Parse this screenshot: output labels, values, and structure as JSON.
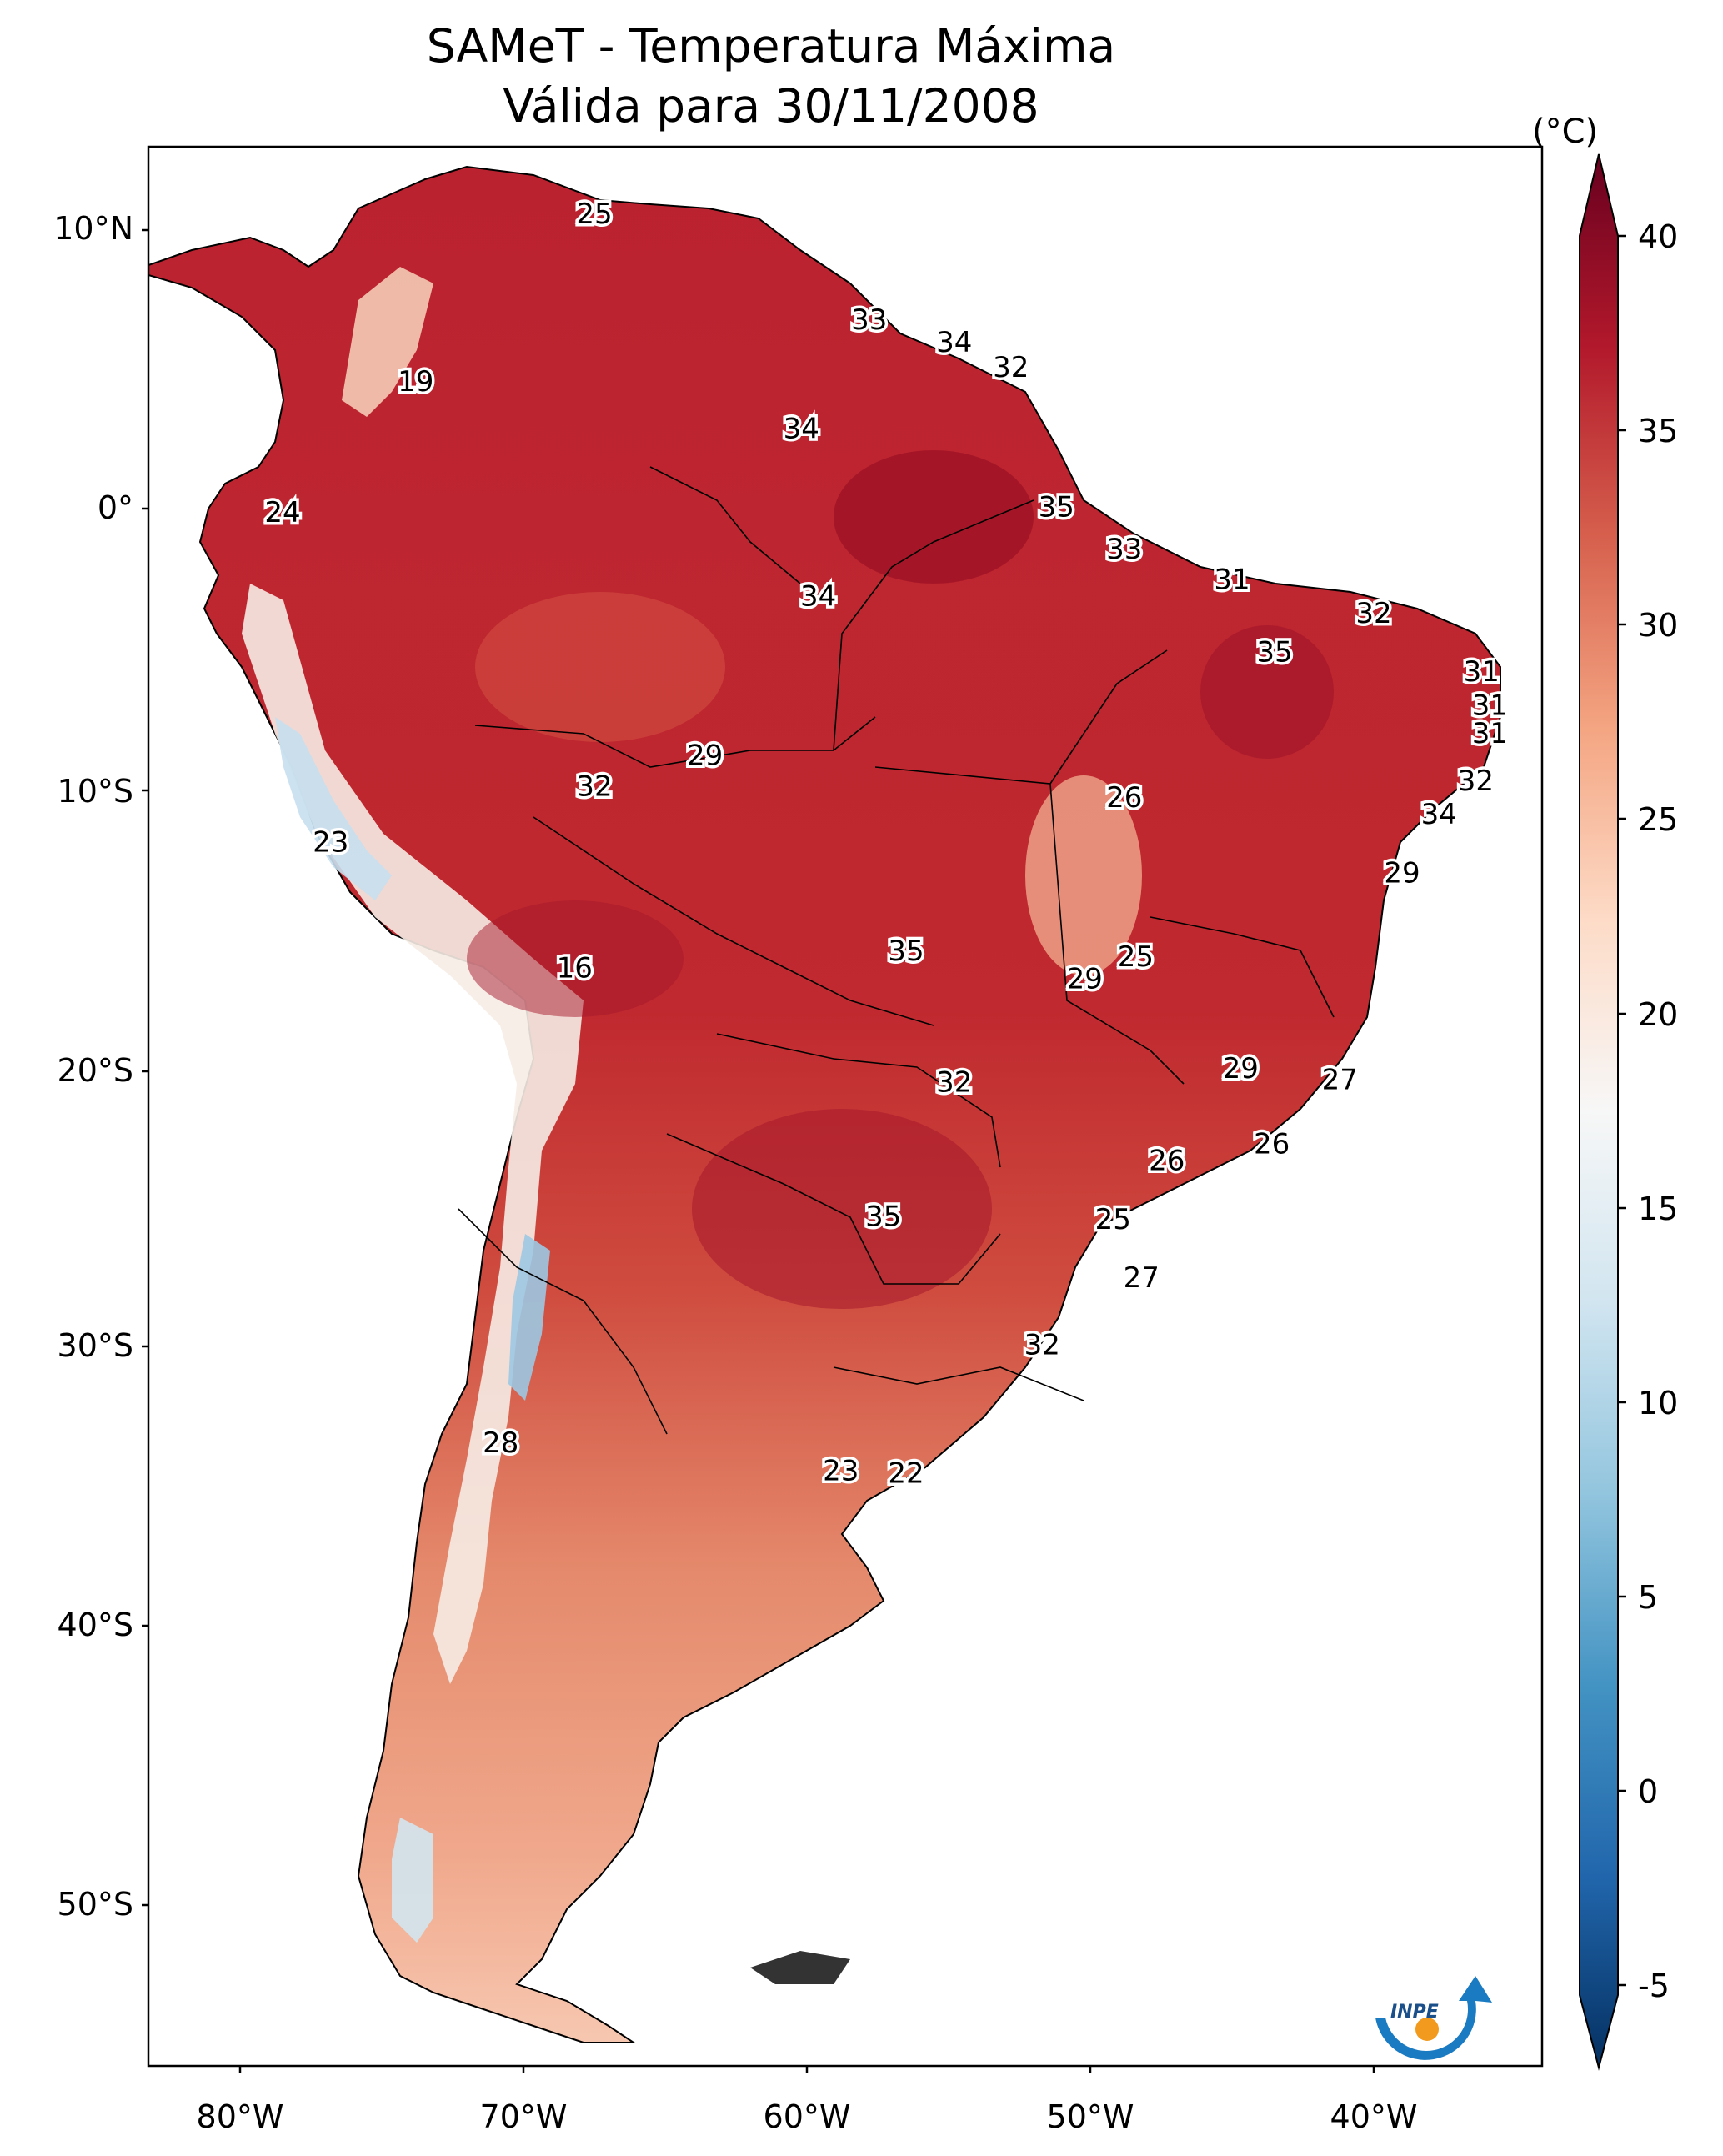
{
  "title_line1": "SAMeT - Temperatura Máxima",
  "title_line2": "Válida para 30/11/2008",
  "colorbar": {
    "unit": "(°C)",
    "ticks": [
      "40",
      "35",
      "30",
      "25",
      "20",
      "15",
      "10",
      "5",
      "0",
      "-5"
    ],
    "range": [
      -5,
      40
    ],
    "colormap": [
      "#053061",
      "#2166ac",
      "#4393c3",
      "#92c5de",
      "#d1e5f0",
      "#f7f7f7",
      "#fddbc7",
      "#f4a582",
      "#d6604d",
      "#b2182b",
      "#67001f"
    ]
  },
  "axes": {
    "lat_ticks": [
      "10°N",
      "0°",
      "10°S",
      "20°S",
      "30°S",
      "40°S",
      "50°S"
    ],
    "lon_ticks": [
      "80°W",
      "70°W",
      "60°W",
      "50°W",
      "40°W"
    ]
  },
  "logo": {
    "text": "INPE",
    "icon": "inpe-logo-icon"
  },
  "labels": [
    {
      "t": "25",
      "lon": -67.5,
      "lat": 10.5
    },
    {
      "t": "19",
      "lon": -73.8,
      "lat": 4.5
    },
    {
      "t": "24",
      "lon": -78.5,
      "lat": -0.2
    },
    {
      "t": "23",
      "lon": -76.8,
      "lat": -12.0
    },
    {
      "t": "16",
      "lon": -68.2,
      "lat": -16.5
    },
    {
      "t": "28",
      "lon": -70.8,
      "lat": -33.5
    },
    {
      "t": "33",
      "lon": -57.8,
      "lat": 6.7
    },
    {
      "t": "34",
      "lon": -54.8,
      "lat": 5.9
    },
    {
      "t": "32",
      "lon": -52.8,
      "lat": 5.0
    },
    {
      "t": "34",
      "lon": -60.2,
      "lat": 2.8
    },
    {
      "t": "35",
      "lon": -51.2,
      "lat": 0.0
    },
    {
      "t": "33",
      "lon": -48.8,
      "lat": -1.5
    },
    {
      "t": "31",
      "lon": -45.0,
      "lat": -2.6
    },
    {
      "t": "32",
      "lon": -40.0,
      "lat": -3.8
    },
    {
      "t": "35",
      "lon": -43.5,
      "lat": -5.2
    },
    {
      "t": "31",
      "lon": -36.2,
      "lat": -5.9
    },
    {
      "t": "31",
      "lon": -35.9,
      "lat": -7.1
    },
    {
      "t": "31",
      "lon": -35.9,
      "lat": -8.1
    },
    {
      "t": "32",
      "lon": -36.4,
      "lat": -9.8
    },
    {
      "t": "34",
      "lon": -37.7,
      "lat": -11.0
    },
    {
      "t": "34",
      "lon": -59.6,
      "lat": -3.2
    },
    {
      "t": "29",
      "lon": -63.6,
      "lat": -8.9
    },
    {
      "t": "32",
      "lon": -67.5,
      "lat": -10.0
    },
    {
      "t": "26",
      "lon": -48.8,
      "lat": -10.4
    },
    {
      "t": "29",
      "lon": -39.0,
      "lat": -13.1
    },
    {
      "t": "35",
      "lon": -56.5,
      "lat": -15.9
    },
    {
      "t": "25",
      "lon": -48.4,
      "lat": -16.1
    },
    {
      "t": "29",
      "lon": -50.2,
      "lat": -16.9
    },
    {
      "t": "32",
      "lon": -54.8,
      "lat": -20.6
    },
    {
      "t": "29",
      "lon": -44.7,
      "lat": -20.1
    },
    {
      "t": "27",
      "lon": -41.2,
      "lat": -20.5
    },
    {
      "t": "26",
      "lon": -43.6,
      "lat": -22.8
    },
    {
      "t": "26",
      "lon": -47.3,
      "lat": -23.4
    },
    {
      "t": "35",
      "lon": -57.3,
      "lat": -25.4
    },
    {
      "t": "25",
      "lon": -49.2,
      "lat": -25.5
    },
    {
      "t": "27",
      "lon": -48.2,
      "lat": -27.6
    },
    {
      "t": "32",
      "lon": -51.7,
      "lat": -30.0
    },
    {
      "t": "23",
      "lon": -58.8,
      "lat": -34.5
    },
    {
      "t": "22",
      "lon": -56.5,
      "lat": -34.6
    }
  ]
}
